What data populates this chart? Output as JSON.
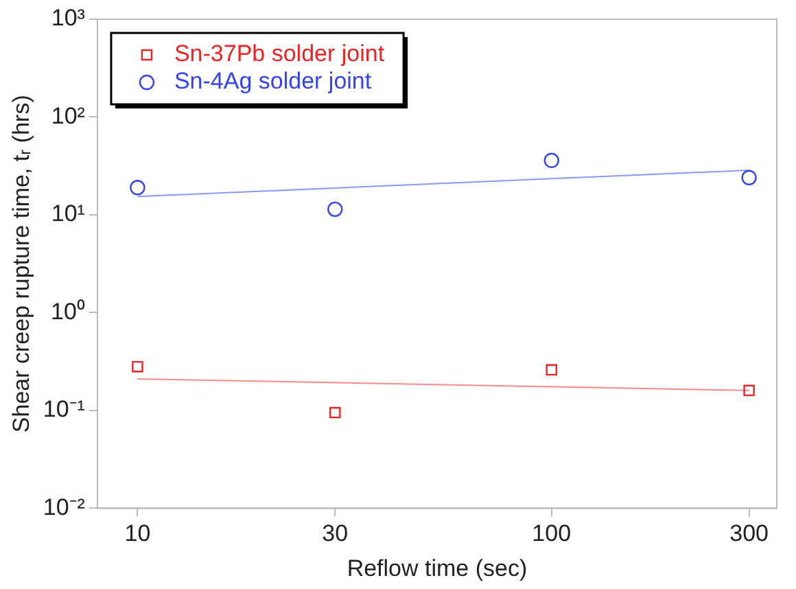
{
  "chart_data": {
    "type": "scatter",
    "xlabel": "Reflow time (sec)",
    "ylabel": "Shear creep rupture time, tᵣ (hrs)",
    "log": "xy",
    "grid": false,
    "legend": "top left",
    "xlim": [
      8,
      350
    ],
    "xticks": [
      10,
      30,
      100,
      300
    ],
    "ylim": [
      0.01,
      1000
    ],
    "yticks": [
      {
        "value": 0.01,
        "label": "10⁻²"
      },
      {
        "value": 0.1,
        "label": "10⁻¹"
      },
      {
        "value": 1,
        "label": "10⁰"
      },
      {
        "value": 10,
        "label": "10¹"
      },
      {
        "value": 100,
        "label": "10²"
      },
      {
        "value": 1000,
        "label": "10³"
      }
    ],
    "series": [
      {
        "name": "Sn-37Pb solder joint",
        "type": "scatter",
        "marker": "square",
        "color": "#ee2222",
        "x": [
          10,
          30,
          100,
          300
        ],
        "values": [
          0.28,
          0.095,
          0.26,
          0.16
        ]
      },
      {
        "name": "Sn-4Ag solder joint",
        "type": "scatter",
        "marker": "circle",
        "color": "#3344ee",
        "x": [
          10,
          30,
          100,
          300
        ],
        "values": [
          19,
          11.4,
          36,
          24
        ]
      },
      {
        "type": "line",
        "marker": "none",
        "color": "#ff8888",
        "x": [
          10,
          300
        ],
        "values": [
          0.21,
          0.16
        ]
      },
      {
        "type": "line",
        "marker": "none",
        "color": "#8899ff",
        "x": [
          10,
          300
        ],
        "values": [
          15.4,
          28.6
        ]
      }
    ]
  }
}
